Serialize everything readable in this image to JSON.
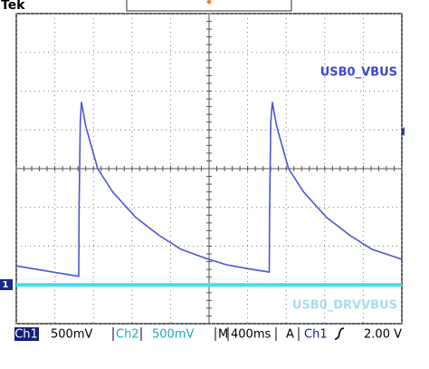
{
  "header": {
    "brand": "Tek"
  },
  "status": {
    "ch1_label": "Ch1",
    "ch1_scale": "500mV",
    "ch2_label": "Ch2",
    "ch2_scale": "500mV",
    "time_label": "M",
    "time_scale": "400ms",
    "trigger_label": "A",
    "trigger_source": "Ch1",
    "trigger_level": "2.00 V",
    "channel_marker": "1"
  },
  "chart_data": {
    "type": "line",
    "x": [
      0,
      1.62,
      1.63,
      1.66,
      1.69,
      1.8,
      2.11,
      2.5,
      3.1,
      3.7,
      4.27,
      4.9,
      5.45,
      6.0,
      6.56,
      6.57,
      6.6,
      6.64,
      6.75,
      7.06,
      7.45,
      8.05,
      8.65,
      9.22,
      10
    ],
    "series": [
      {
        "name": "USB0_VBUS",
        "color": "#4c55d6",
        "values": [
          -2.51,
          -2.78,
          -1.0,
          1.2,
          1.71,
          1.1,
          0.0,
          -0.6,
          -1.26,
          -1.72,
          -2.08,
          -2.31,
          -2.48,
          -2.58,
          -2.67,
          -1.0,
          1.2,
          1.71,
          1.1,
          0.0,
          -0.6,
          -1.26,
          -1.72,
          -2.08,
          -2.34
        ]
      },
      {
        "name": "USB0_DRVVBUS",
        "color": "#3fe0ea",
        "values": [
          -3.0,
          -3.0,
          -3.0,
          -3.0,
          -3.0,
          -3.0,
          -3.0,
          -3.0,
          -3.0,
          -3.0,
          -3.0,
          -3.0,
          -3.0,
          -3.0,
          -3.0,
          -3.0,
          -3.0,
          -3.0,
          -3.0,
          -3.0,
          -3.0,
          -3.0,
          -3.0,
          -3.0,
          -3.0
        ]
      }
    ],
    "xlim": [
      0,
      10
    ],
    "ylim": [
      -4,
      4
    ],
    "xticks": [
      0,
      1,
      2,
      3,
      4,
      5,
      6,
      7,
      8,
      9,
      10
    ],
    "yticks": [
      -4,
      -3,
      -2,
      -1,
      0,
      1,
      2,
      3,
      4
    ],
    "grid": true
  }
}
